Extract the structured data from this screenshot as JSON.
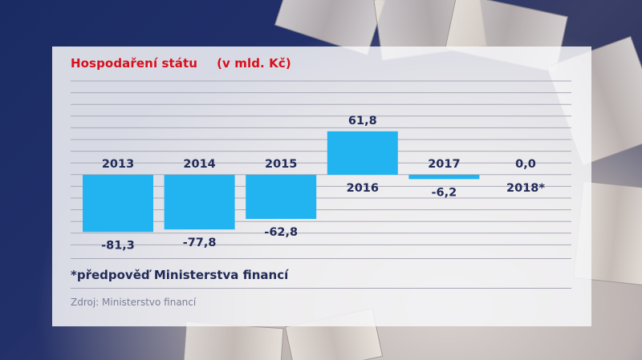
{
  "title": "Hospodaření státu",
  "unit": "(v mld. Kč)",
  "footnote": "*předpověď Ministerstva financí",
  "source": "Zdroj: Ministerstvo financí",
  "colors": {
    "bar": "#21b4f0",
    "title": "#d7101b",
    "text": "#222b57",
    "panel": "#f6f6f8"
  },
  "chart_data": {
    "type": "bar",
    "categories": [
      "2013",
      "2014",
      "2015",
      "2016",
      "2017",
      "2018*"
    ],
    "values": [
      -81.3,
      -77.8,
      -62.8,
      61.8,
      -6.2,
      0.0
    ],
    "value_labels": [
      "-81,3",
      "-77,8",
      "-62,8",
      "61,8",
      "-6,2",
      "0,0"
    ],
    "title": "Hospodaření státu",
    "ylabel": "",
    "grid": true
  }
}
